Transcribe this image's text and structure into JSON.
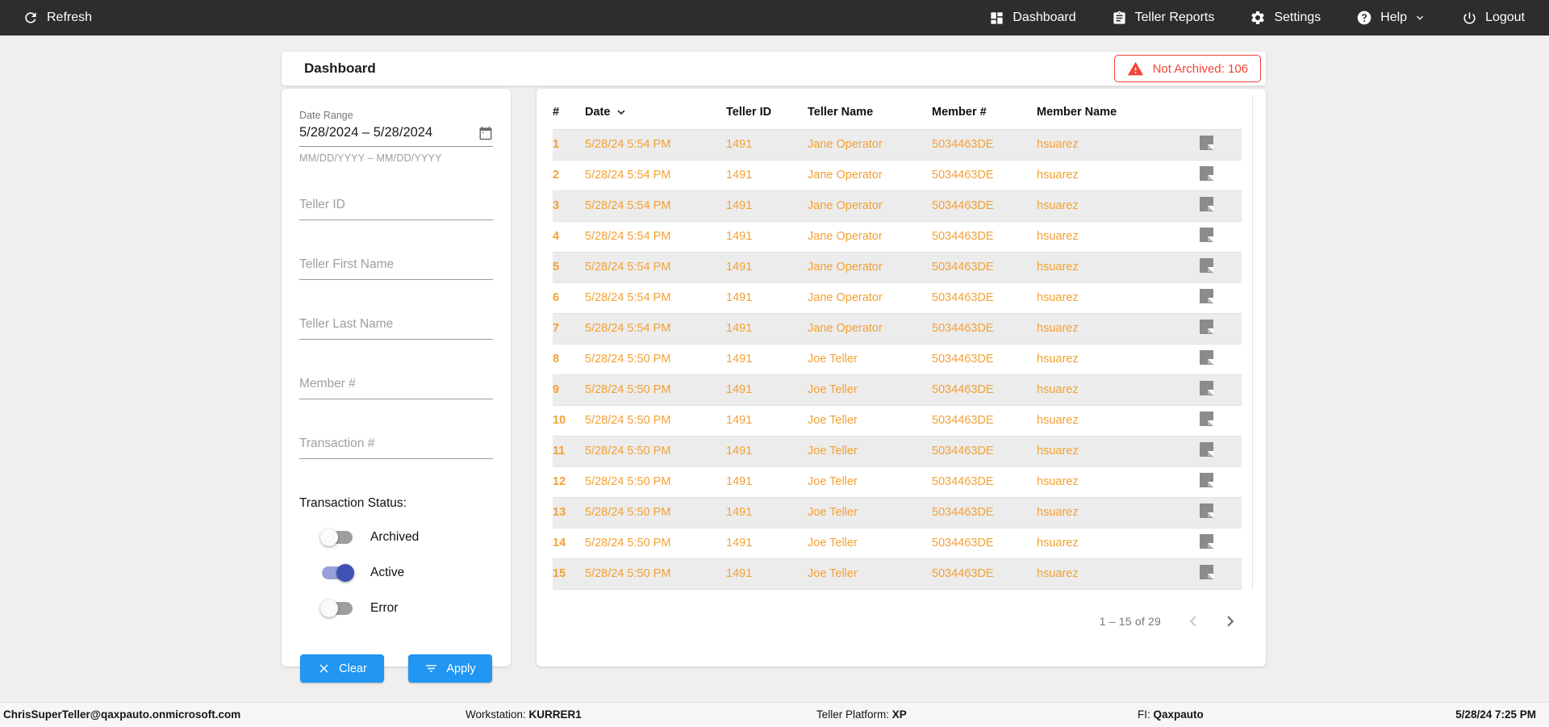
{
  "topbar": {
    "refresh_label": "Refresh",
    "nav": [
      {
        "label": "Dashboard"
      },
      {
        "label": "Teller Reports"
      },
      {
        "label": "Settings"
      },
      {
        "label": "Help"
      },
      {
        "label": "Logout"
      }
    ]
  },
  "header": {
    "title": "Dashboard",
    "badge_label": "Not Archived: 106"
  },
  "filters": {
    "date_range": {
      "label": "Date Range",
      "value": "5/28/2024 – 5/28/2024",
      "hint": "MM/DD/YYYY – MM/DD/YYYY"
    },
    "fields": [
      {
        "placeholder": "Teller ID",
        "value": ""
      },
      {
        "placeholder": "Teller First Name",
        "value": ""
      },
      {
        "placeholder": "Teller Last Name",
        "value": ""
      },
      {
        "placeholder": "Member #",
        "value": ""
      },
      {
        "placeholder": "Transaction #",
        "value": ""
      }
    ],
    "status": {
      "label": "Transaction Status:",
      "toggles": [
        {
          "label": "Archived",
          "on": false
        },
        {
          "label": "Active",
          "on": true
        },
        {
          "label": "Error",
          "on": false
        }
      ]
    },
    "clear_label": "Clear",
    "apply_label": "Apply"
  },
  "table": {
    "columns": [
      "#",
      "Date",
      "Teller ID",
      "Teller Name",
      "Member #",
      "Member Name"
    ],
    "sorted_column": "Date",
    "sort_direction": "desc",
    "rows": [
      [
        "1",
        "5/28/24 5:54 PM",
        "1491",
        "Jane Operator",
        "5034463DE",
        "hsuarez"
      ],
      [
        "2",
        "5/28/24 5:54 PM",
        "1491",
        "Jane Operator",
        "5034463DE",
        "hsuarez"
      ],
      [
        "3",
        "5/28/24 5:54 PM",
        "1491",
        "Jane Operator",
        "5034463DE",
        "hsuarez"
      ],
      [
        "4",
        "5/28/24 5:54 PM",
        "1491",
        "Jane Operator",
        "5034463DE",
        "hsuarez"
      ],
      [
        "5",
        "5/28/24 5:54 PM",
        "1491",
        "Jane Operator",
        "5034463DE",
        "hsuarez"
      ],
      [
        "6",
        "5/28/24 5:54 PM",
        "1491",
        "Jane Operator",
        "5034463DE",
        "hsuarez"
      ],
      [
        "7",
        "5/28/24 5:54 PM",
        "1491",
        "Jane Operator",
        "5034463DE",
        "hsuarez"
      ],
      [
        "8",
        "5/28/24 5:50 PM",
        "1491",
        "Joe Teller",
        "5034463DE",
        "hsuarez"
      ],
      [
        "9",
        "5/28/24 5:50 PM",
        "1491",
        "Joe Teller",
        "5034463DE",
        "hsuarez"
      ],
      [
        "10",
        "5/28/24 5:50 PM",
        "1491",
        "Joe Teller",
        "5034463DE",
        "hsuarez"
      ],
      [
        "11",
        "5/28/24 5:50 PM",
        "1491",
        "Joe Teller",
        "5034463DE",
        "hsuarez"
      ],
      [
        "12",
        "5/28/24 5:50 PM",
        "1491",
        "Joe Teller",
        "5034463DE",
        "hsuarez"
      ],
      [
        "13",
        "5/28/24 5:50 PM",
        "1491",
        "Joe Teller",
        "5034463DE",
        "hsuarez"
      ],
      [
        "14",
        "5/28/24 5:50 PM",
        "1491",
        "Joe Teller",
        "5034463DE",
        "hsuarez"
      ],
      [
        "15",
        "5/28/24 5:50 PM",
        "1491",
        "Joe Teller",
        "5034463DE",
        "hsuarez"
      ]
    ],
    "pagination": {
      "label": "1 – 15 of 29",
      "prev_enabled": false,
      "next_enabled": true
    }
  },
  "footer": {
    "user": "ChrisSuperTeller@qaxpauto.onmicrosoft.com",
    "workstation_label": "Workstation: ",
    "workstation": "KURRER1",
    "platform_label": "Teller Platform: ",
    "platform": "XP",
    "fi_label": "FI: ",
    "fi": "Qaxpauto",
    "datetime": "5/28/24 7:25 PM"
  },
  "colors": {
    "accent_orange": "#f3a134",
    "button_blue": "#2196f3",
    "badge_red": "#f44336",
    "toggle_on_thumb": "#3f51b5",
    "toggle_on_track": "#98a2d8",
    "topbar_bg": "#2d2d2d"
  }
}
